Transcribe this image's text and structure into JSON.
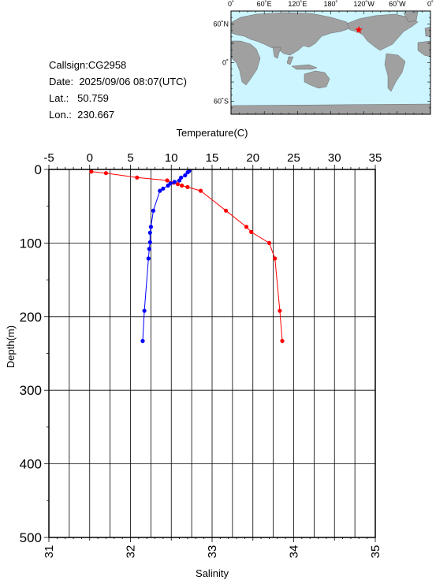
{
  "station": {
    "callsign_text": "Callsign:CG2958",
    "date_label": "Date:",
    "date_value": "2025/09/06 08:07(UTC)",
    "lat_label": "Lat.:",
    "lat_value": "50.759",
    "lon_label": "Lon.:",
    "lon_value": "230.667"
  },
  "map": {
    "lon_ticks": [
      "0˚",
      "60˚E",
      "120˚E",
      "180˚",
      "120˚W",
      "60˚W",
      "0˚"
    ],
    "lat_ticks": [
      "60˚N",
      "0˚",
      "60˚S"
    ],
    "ocean_color": "#ccf5ff",
    "land_color": "#a0a0a0",
    "marker_color": "#ff0000",
    "marker_lon": 230.667,
    "marker_lat": 50.759
  },
  "chart_data": {
    "type": "line",
    "ylabel": "Depth(m)",
    "ylim": [
      0,
      500
    ],
    "y_ticks": [
      0,
      100,
      200,
      300,
      400,
      500
    ],
    "y_reversed": true,
    "grid": true,
    "temperature_axis": {
      "label": "Temperature(C)",
      "position": "top",
      "range": [
        -5,
        35
      ],
      "ticks": [
        -5,
        0,
        5,
        10,
        15,
        20,
        25,
        30,
        35
      ]
    },
    "salinity_axis": {
      "label": "Salinity",
      "position": "bottom",
      "range": [
        31,
        35
      ],
      "ticks": [
        31,
        32,
        33,
        34,
        35
      ]
    },
    "series": [
      {
        "variable": "temperature",
        "color": "#ff0000",
        "points": [
          [
            0.2,
            3
          ],
          [
            2.0,
            5
          ],
          [
            5.8,
            11
          ],
          [
            9.5,
            15
          ],
          [
            10.3,
            18
          ],
          [
            10.8,
            20
          ],
          [
            11.3,
            22
          ],
          [
            12.0,
            24
          ],
          [
            13.6,
            29
          ],
          [
            16.7,
            56
          ],
          [
            19.2,
            78
          ],
          [
            19.8,
            85
          ],
          [
            22.0,
            100
          ],
          [
            22.7,
            121
          ],
          [
            23.3,
            192
          ],
          [
            23.6,
            233
          ]
        ]
      },
      {
        "variable": "salinity",
        "color": "#0000ff",
        "points": [
          [
            32.72,
            2
          ],
          [
            32.7,
            4
          ],
          [
            32.67,
            8
          ],
          [
            32.62,
            11
          ],
          [
            32.6,
            15
          ],
          [
            32.54,
            17
          ],
          [
            32.49,
            19
          ],
          [
            32.46,
            22
          ],
          [
            32.4,
            26
          ],
          [
            32.36,
            29
          ],
          [
            32.28,
            56
          ],
          [
            32.25,
            78
          ],
          [
            32.24,
            86
          ],
          [
            32.24,
            99
          ],
          [
            32.23,
            108
          ],
          [
            32.22,
            121
          ],
          [
            32.17,
            192
          ],
          [
            32.15,
            233
          ]
        ]
      }
    ]
  }
}
